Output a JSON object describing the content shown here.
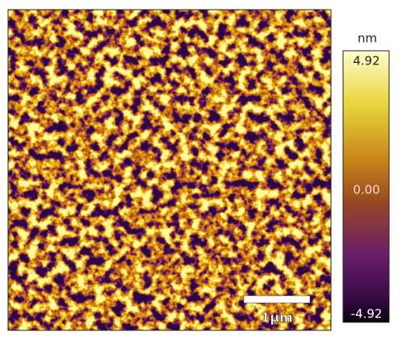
{
  "scale_bar": {
    "label": "1μm"
  },
  "colorbar": {
    "unit": "nm",
    "max_label": "4.92",
    "mid_label": "0.00",
    "min_label": "-4.92"
  }
}
